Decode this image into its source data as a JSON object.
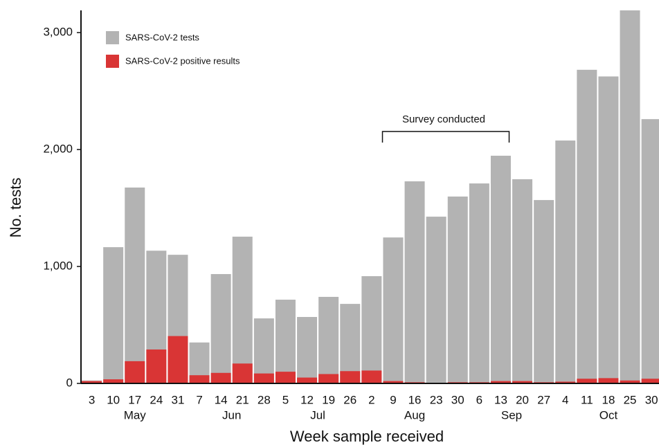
{
  "chart_data": {
    "type": "bar",
    "x_label": "Week sample received",
    "y_label": "No. tests",
    "categories": [
      "3",
      "10",
      "17",
      "24",
      "31",
      "7",
      "14",
      "21",
      "28",
      "5",
      "12",
      "19",
      "26",
      "2",
      "9",
      "16",
      "23",
      "30",
      "6",
      "13",
      "20",
      "27",
      "4",
      "11",
      "18",
      "25",
      "30"
    ],
    "months": [
      "May",
      "Jun",
      "Jul",
      "Aug",
      "Sep",
      "Oct"
    ],
    "series": [
      {
        "name": "SARS-CoV-2 tests",
        "color": "#b3b3b3",
        "values": [
          25,
          1165,
          1675,
          1135,
          1100,
          350,
          935,
          1255,
          556,
          716,
          568,
          740,
          680,
          917,
          1248,
          1728,
          1426,
          1598,
          1710,
          1947,
          1746,
          1568,
          2077,
          2682,
          2625,
          3190,
          2260
        ]
      },
      {
        "name": "SARS-CoV-2 positive results",
        "color": "#d93535",
        "values": [
          20,
          35,
          190,
          290,
          405,
          70,
          90,
          170,
          85,
          100,
          50,
          80,
          105,
          110,
          20,
          10,
          5,
          10,
          10,
          20,
          20,
          10,
          15,
          40,
          45,
          25,
          40
        ]
      }
    ],
    "annotation": "Survey conducted",
    "ylim": [
      0,
      3190
    ],
    "yticks": [
      {
        "value": 0,
        "label": "0"
      },
      {
        "value": 1000,
        "label": "1,000"
      },
      {
        "value": 2000,
        "label": "2,000"
      },
      {
        "value": 3000,
        "label": "3,000"
      }
    ],
    "legend": "top-left"
  }
}
